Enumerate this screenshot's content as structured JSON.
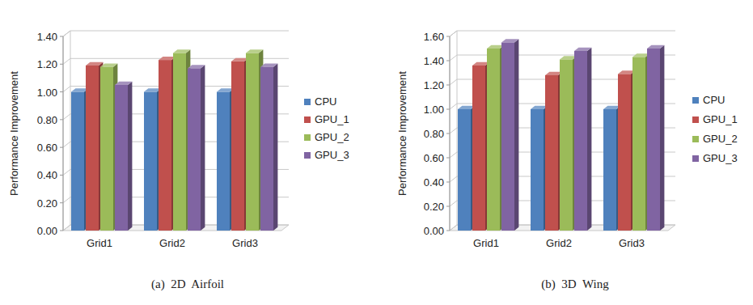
{
  "chart_data": [
    {
      "type": "bar",
      "title": "(a)  2D  Airfoil",
      "y_label": "Performance Improvement",
      "categories": [
        "Grid1",
        "Grid2",
        "Grid3"
      ],
      "series": [
        {
          "name": "CPU",
          "color": "#4f81bd",
          "values": [
            1.0,
            1.0,
            1.0
          ]
        },
        {
          "name": "GPU_1",
          "color": "#c0504d",
          "values": [
            1.19,
            1.23,
            1.22
          ]
        },
        {
          "name": "GPU_2",
          "color": "#9bbb59",
          "values": [
            1.18,
            1.28,
            1.28
          ]
        },
        {
          "name": "GPU_3",
          "color": "#8064a2",
          "values": [
            1.05,
            1.17,
            1.18
          ]
        }
      ],
      "ylim": [
        0,
        1.4
      ],
      "yticks": [
        {
          "value": 0,
          "label": "0.00"
        },
        {
          "value": 0.2,
          "label": "0.20"
        },
        {
          "value": 0.4,
          "label": "0.40"
        },
        {
          "value": 0.6,
          "label": "0.60"
        },
        {
          "value": 0.8,
          "label": "0.80"
        },
        {
          "value": 1.0,
          "label": "1.00"
        },
        {
          "value": 1.2,
          "label": "1.20"
        },
        {
          "value": 1.4,
          "label": "1.40"
        }
      ],
      "grid": true,
      "legend": "right"
    },
    {
      "type": "bar",
      "title": "(b)  3D  Wing",
      "y_label": "Performance Improvement",
      "categories": [
        "Grid1",
        "Grid2",
        "Grid3"
      ],
      "series": [
        {
          "name": "CPU",
          "color": "#4f81bd",
          "values": [
            1.0,
            1.0,
            1.0
          ]
        },
        {
          "name": "GPU_1",
          "color": "#c0504d",
          "values": [
            1.36,
            1.28,
            1.29
          ]
        },
        {
          "name": "GPU_2",
          "color": "#9bbb59",
          "values": [
            1.5,
            1.41,
            1.43
          ]
        },
        {
          "name": "GPU_3",
          "color": "#8064a2",
          "values": [
            1.55,
            1.48,
            1.5
          ]
        }
      ],
      "ylim": [
        0,
        1.6
      ],
      "yticks": [
        {
          "value": 0,
          "label": "0.00"
        },
        {
          "value": 0.2,
          "label": "0.20"
        },
        {
          "value": 0.4,
          "label": "0.40"
        },
        {
          "value": 0.6,
          "label": "0.60"
        },
        {
          "value": 0.8,
          "label": "0.80"
        },
        {
          "value": 1.0,
          "label": "1.00"
        },
        {
          "value": 1.2,
          "label": "1.20"
        },
        {
          "value": 1.4,
          "label": "1.40"
        },
        {
          "value": 1.6,
          "label": "1.60"
        }
      ],
      "grid": true,
      "legend": "right"
    }
  ]
}
